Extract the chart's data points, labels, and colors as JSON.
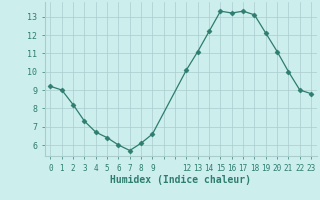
{
  "x": [
    0,
    1,
    2,
    3,
    4,
    5,
    6,
    7,
    8,
    9,
    12,
    13,
    14,
    15,
    16,
    17,
    18,
    19,
    20,
    21,
    22,
    23
  ],
  "y": [
    9.2,
    9.0,
    8.2,
    7.3,
    6.7,
    6.4,
    6.0,
    5.7,
    6.1,
    6.6,
    10.1,
    11.1,
    12.2,
    13.3,
    13.2,
    13.3,
    13.1,
    12.1,
    11.1,
    10.0,
    9.0,
    8.8
  ],
  "line_color": "#2e7d6e",
  "marker": "D",
  "marker_size": 2.5,
  "bg_color": "#cceeed",
  "grid_color": "#aacccc",
  "xlabel": "Humidex (Indice chaleur)",
  "ylim": [
    5.4,
    13.8
  ],
  "xlim": [
    -0.5,
    23.5
  ],
  "yticks": [
    6,
    7,
    8,
    9,
    10,
    11,
    12,
    13
  ],
  "xticks_all": [
    0,
    1,
    2,
    3,
    4,
    5,
    6,
    7,
    8,
    9,
    10,
    11,
    12,
    13,
    14,
    15,
    16,
    17,
    18,
    19,
    20,
    21,
    22,
    23
  ],
  "xticks_labeled": [
    0,
    1,
    2,
    3,
    4,
    5,
    6,
    7,
    8,
    9,
    12,
    13,
    14,
    15,
    16,
    17,
    18,
    19,
    20,
    21,
    22,
    23
  ],
  "xtick_labels": [
    "0",
    "1",
    "2",
    "3",
    "4",
    "5",
    "6",
    "7",
    "8",
    "9",
    "12",
    "13",
    "14",
    "15",
    "16",
    "17",
    "18",
    "19",
    "20",
    "21",
    "22",
    "23"
  ]
}
